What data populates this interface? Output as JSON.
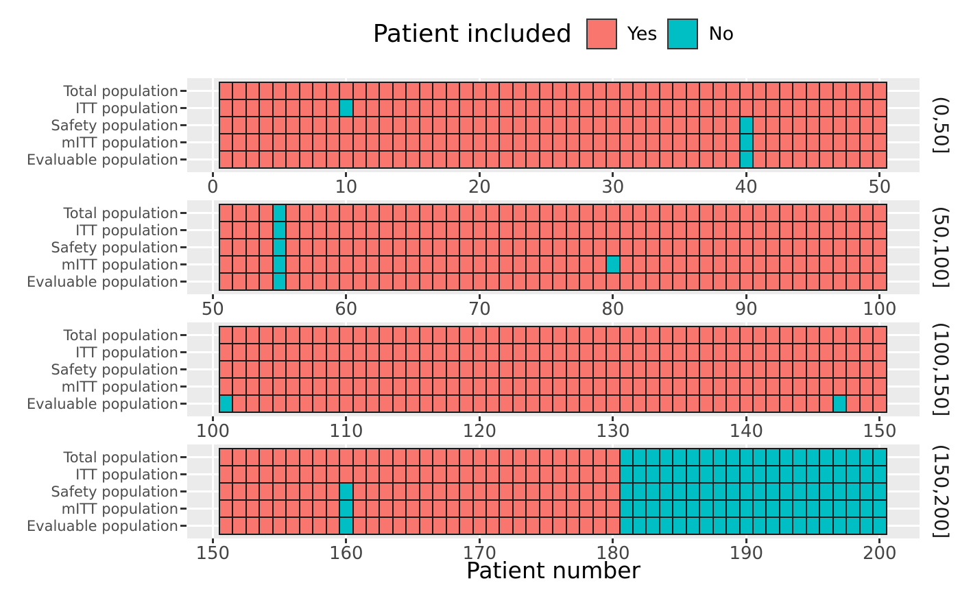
{
  "chart_data": {
    "type": "heatmap",
    "title": "",
    "xlabel": "Patient number",
    "ylabel": "",
    "legend": {
      "title": "Patient included",
      "position": "top",
      "items": [
        {
          "label": "Yes",
          "color": "#F8766D"
        },
        {
          "label": "No",
          "color": "#00BFC4"
        }
      ]
    },
    "y_categories": [
      "Total population",
      "ITT population",
      "Safety population",
      "mITT population",
      "Evaluable population"
    ],
    "x_range": [
      1,
      200
    ],
    "facets": [
      {
        "label": "(0,50]",
        "start": 1,
        "end": 50,
        "ticks": [
          0,
          10,
          20,
          30,
          40,
          50
        ]
      },
      {
        "label": "(50,100]",
        "start": 51,
        "end": 100,
        "ticks": [
          50,
          60,
          70,
          80,
          90,
          100
        ]
      },
      {
        "label": "(100,150]",
        "start": 101,
        "end": 150,
        "ticks": [
          100,
          110,
          120,
          130,
          140,
          150
        ]
      },
      {
        "label": "(150,200]",
        "start": 151,
        "end": 200,
        "ticks": [
          150,
          160,
          170,
          180,
          190,
          200
        ]
      }
    ],
    "default_value": "Yes",
    "not_included": {
      "Total population": [
        55,
        181,
        182,
        183,
        184,
        185,
        186,
        187,
        188,
        189,
        190,
        191,
        192,
        193,
        194,
        195,
        196,
        197,
        198,
        199,
        200
      ],
      "ITT population": [
        10,
        55,
        181,
        182,
        183,
        184,
        185,
        186,
        187,
        188,
        189,
        190,
        191,
        192,
        193,
        194,
        195,
        196,
        197,
        198,
        199,
        200
      ],
      "Safety population": [
        40,
        55,
        160,
        181,
        182,
        183,
        184,
        185,
        186,
        187,
        188,
        189,
        190,
        191,
        192,
        193,
        194,
        195,
        196,
        197,
        198,
        199,
        200
      ],
      "mITT population": [
        40,
        55,
        80,
        160,
        181,
        182,
        183,
        184,
        185,
        186,
        187,
        188,
        189,
        190,
        191,
        192,
        193,
        194,
        195,
        196,
        197,
        198,
        199,
        200
      ],
      "Evaluable population": [
        40,
        55,
        101,
        147,
        160,
        181,
        182,
        183,
        184,
        185,
        186,
        187,
        188,
        189,
        190,
        191,
        192,
        193,
        194,
        195,
        196,
        197,
        198,
        199,
        200
      ]
    },
    "colors": {
      "yes": "#F8766D",
      "no": "#00BFC4",
      "panel_bg": "#EBEBEB",
      "grid": "#FFFFFF",
      "tile_border": "#1A1A1A",
      "axis_text": "#4D4D4D",
      "tick_mark": "#333333"
    },
    "grid": true
  }
}
